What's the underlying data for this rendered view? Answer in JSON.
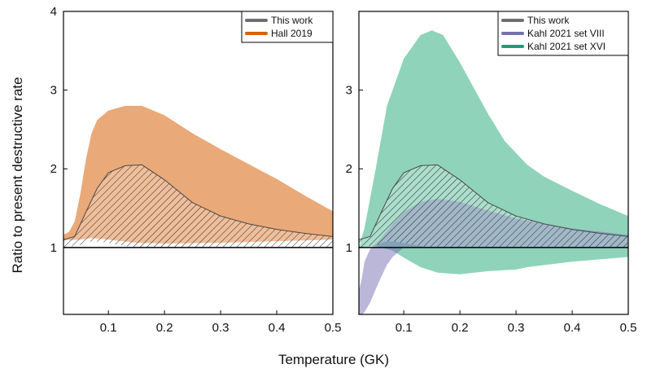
{
  "figure": {
    "xlabel": "Temperature (GK)",
    "ylabel": "Ratio to present destructive rate"
  },
  "chart_data": [
    {
      "type": "area",
      "xlim": [
        0.02,
        0.5
      ],
      "ylim": [
        0.15,
        4.0
      ],
      "x_ticks": [
        0.1,
        0.2,
        0.3,
        0.4,
        0.5
      ],
      "y_ticks": [
        1,
        2,
        3,
        4
      ],
      "y_tick_labels": [
        "1",
        "2",
        "3",
        "4"
      ],
      "reference_line": 1,
      "legend_position": "top-right",
      "legend": [
        {
          "label": "This work",
          "color": "#6e6e6e"
        },
        {
          "label": "Hall 2019",
          "color": "#d95f02"
        }
      ],
      "series": [
        {
          "name": "Hall 2019",
          "color": "#eaa978",
          "upper": [
            [
              0.02,
              1.16
            ],
            [
              0.03,
              1.2
            ],
            [
              0.04,
              1.33
            ],
            [
              0.05,
              1.68
            ],
            [
              0.06,
              2.12
            ],
            [
              0.07,
              2.45
            ],
            [
              0.08,
              2.62
            ],
            [
              0.1,
              2.74
            ],
            [
              0.13,
              2.8
            ],
            [
              0.16,
              2.8
            ],
            [
              0.2,
              2.68
            ],
            [
              0.25,
              2.45
            ],
            [
              0.3,
              2.25
            ],
            [
              0.35,
              2.06
            ],
            [
              0.4,
              1.87
            ],
            [
              0.45,
              1.66
            ],
            [
              0.5,
              1.46
            ]
          ],
          "lower": [
            [
              0.02,
              1.09
            ],
            [
              0.05,
              1.1
            ],
            [
              0.07,
              1.12
            ],
            [
              0.1,
              1.1
            ],
            [
              0.15,
              1.06
            ],
            [
              0.2,
              1.05
            ],
            [
              0.3,
              1.06
            ],
            [
              0.4,
              1.08
            ],
            [
              0.5,
              1.1
            ]
          ]
        },
        {
          "name": "This work",
          "color": "#6e6e6e",
          "hatched": true,
          "upper": [
            [
              0.02,
              1.1
            ],
            [
              0.04,
              1.14
            ],
            [
              0.06,
              1.45
            ],
            [
              0.08,
              1.75
            ],
            [
              0.1,
              1.95
            ],
            [
              0.13,
              2.04
            ],
            [
              0.16,
              2.05
            ],
            [
              0.2,
              1.86
            ],
            [
              0.25,
              1.57
            ],
            [
              0.3,
              1.4
            ],
            [
              0.35,
              1.3
            ],
            [
              0.4,
              1.23
            ],
            [
              0.45,
              1.18
            ],
            [
              0.5,
              1.14
            ]
          ],
          "lower": [
            [
              0.02,
              1.0
            ],
            [
              0.05,
              1.03
            ],
            [
              0.07,
              1.08
            ],
            [
              0.09,
              1.07
            ],
            [
              0.12,
              1.03
            ],
            [
              0.15,
              1.0
            ],
            [
              0.5,
              1.0
            ]
          ]
        }
      ]
    },
    {
      "type": "area",
      "xlim": [
        0.02,
        0.5
      ],
      "ylim": [
        0.15,
        4.0
      ],
      "x_ticks": [
        0.1,
        0.2,
        0.3,
        0.4,
        0.5
      ],
      "y_ticks": [
        1,
        2,
        3
      ],
      "y_tick_labels": [
        "1",
        "2",
        "3"
      ],
      "reference_line": 1,
      "legend_position": "top-right",
      "legend": [
        {
          "label": "This work",
          "color": "#6e6e6e"
        },
        {
          "label": "Kahl 2021 set VIII",
          "color": "#7570b3"
        },
        {
          "label": "Kahl 2021 set XVI",
          "color": "#1b9e77"
        }
      ],
      "series": [
        {
          "name": "Kahl 2021 set XVI",
          "color": "#8fd3bb",
          "upper": [
            [
              0.02,
              1.0
            ],
            [
              0.03,
              1.25
            ],
            [
              0.05,
              2.0
            ],
            [
              0.07,
              2.8
            ],
            [
              0.1,
              3.4
            ],
            [
              0.13,
              3.7
            ],
            [
              0.15,
              3.76
            ],
            [
              0.17,
              3.7
            ],
            [
              0.2,
              3.35
            ],
            [
              0.25,
              2.7
            ],
            [
              0.28,
              2.35
            ],
            [
              0.3,
              2.2
            ],
            [
              0.32,
              2.05
            ],
            [
              0.35,
              1.9
            ],
            [
              0.4,
              1.72
            ],
            [
              0.45,
              1.55
            ],
            [
              0.5,
              1.4
            ]
          ],
          "lower": [
            [
              0.02,
              1.0
            ],
            [
              0.05,
              1.02
            ],
            [
              0.08,
              0.96
            ],
            [
              0.1,
              0.87
            ],
            [
              0.13,
              0.75
            ],
            [
              0.16,
              0.68
            ],
            [
              0.2,
              0.66
            ],
            [
              0.25,
              0.7
            ],
            [
              0.3,
              0.72
            ],
            [
              0.32,
              0.75
            ],
            [
              0.4,
              0.82
            ],
            [
              0.5,
              0.88
            ]
          ]
        },
        {
          "name": "Kahl 2021 set VIII",
          "color": "#7570b3",
          "opacity": 0.5,
          "upper": [
            [
              0.02,
              0.45
            ],
            [
              0.025,
              0.6
            ],
            [
              0.03,
              0.82
            ],
            [
              0.04,
              0.98
            ],
            [
              0.06,
              1.12
            ],
            [
              0.08,
              1.3
            ],
            [
              0.1,
              1.45
            ],
            [
              0.13,
              1.58
            ],
            [
              0.16,
              1.62
            ],
            [
              0.2,
              1.58
            ],
            [
              0.25,
              1.47
            ],
            [
              0.3,
              1.37
            ],
            [
              0.35,
              1.3
            ],
            [
              0.4,
              1.24
            ],
            [
              0.45,
              1.2
            ],
            [
              0.5,
              1.16
            ]
          ],
          "lower": [
            [
              0.02,
              0.1
            ],
            [
              0.03,
              0.18
            ],
            [
              0.04,
              0.3
            ],
            [
              0.05,
              0.47
            ],
            [
              0.06,
              0.63
            ],
            [
              0.07,
              0.78
            ],
            [
              0.08,
              0.88
            ],
            [
              0.1,
              1.0
            ],
            [
              0.5,
              1.0
            ]
          ]
        },
        {
          "name": "This work",
          "color": "#6e6e6e",
          "hatched": true,
          "upper": [
            [
              0.02,
              1.1
            ],
            [
              0.04,
              1.14
            ],
            [
              0.06,
              1.45
            ],
            [
              0.08,
              1.75
            ],
            [
              0.1,
              1.95
            ],
            [
              0.13,
              2.04
            ],
            [
              0.16,
              2.05
            ],
            [
              0.2,
              1.86
            ],
            [
              0.25,
              1.57
            ],
            [
              0.3,
              1.4
            ],
            [
              0.35,
              1.3
            ],
            [
              0.4,
              1.23
            ],
            [
              0.45,
              1.18
            ],
            [
              0.5,
              1.14
            ]
          ],
          "lower": [
            [
              0.02,
              1.0
            ],
            [
              0.05,
              1.03
            ],
            [
              0.07,
              1.08
            ],
            [
              0.09,
              1.07
            ],
            [
              0.12,
              1.03
            ],
            [
              0.15,
              1.0
            ],
            [
              0.5,
              1.0
            ]
          ]
        }
      ]
    }
  ]
}
